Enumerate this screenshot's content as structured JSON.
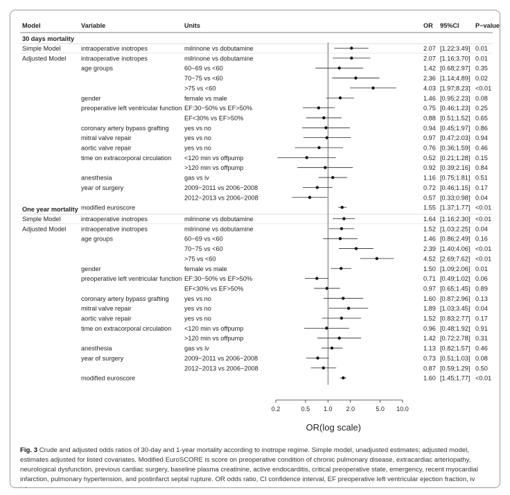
{
  "chart_data": {
    "type": "forest",
    "xlabel": "OR(log scale)",
    "x_ticks": [
      0.2,
      0.5,
      1.0,
      2.0,
      5.0,
      10.0
    ],
    "x_tick_labels": [
      "0.2",
      "0.5",
      "1.0",
      "2.0",
      "5.0",
      "10.0"
    ],
    "reference_line": 1.0,
    "columns": {
      "model": "Model",
      "variable": "Variable",
      "units": "Units",
      "or": "OR",
      "ci": "95%CI",
      "p": "P−value"
    },
    "sections": [
      {
        "title": "30 days mortality",
        "rows": [
          {
            "model": "Simple Model",
            "variable": "intraoperative inotropes",
            "units": "milrinone vs dobutamine",
            "or": 2.07,
            "lo": 1.22,
            "hi": 3.49,
            "or_text": "2.07",
            "ci_text": "[1.22;3.49]",
            "p": "0.01"
          },
          {
            "model": "Adjusted Model",
            "variable": "intraoperative inotropes",
            "units": "milrinone vs dobutamine",
            "or": 2.07,
            "lo": 1.16,
            "hi": 3.7,
            "or_text": "2.07",
            "ci_text": "[1.16;3.70]",
            "p": "0.01"
          },
          {
            "model": "",
            "variable": "age groups",
            "units": "60−69 vs <60",
            "or": 1.42,
            "lo": 0.68,
            "hi": 2.97,
            "or_text": "1.42",
            "ci_text": "[0.68;2.97]",
            "p": "0.35"
          },
          {
            "model": "",
            "variable": "",
            "units": "70−75 vs <60",
            "or": 2.36,
            "lo": 1.14,
            "hi": 4.89,
            "or_text": "2.36",
            "ci_text": "[1.14;4.89]",
            "p": "0.02"
          },
          {
            "model": "",
            "variable": "",
            "units": ">75 vs <60",
            "or": 4.03,
            "lo": 1.97,
            "hi": 8.23,
            "or_text": "4.03",
            "ci_text": "[1.97;8.23]",
            "p": "<0.01"
          },
          {
            "model": "",
            "variable": "gender",
            "units": "female vs male",
            "or": 1.46,
            "lo": 0.95,
            "hi": 2.23,
            "or_text": "1.46",
            "ci_text": "[0.95;2.23]",
            "p": "0.08"
          },
          {
            "model": "",
            "variable": "preoperative left ventricular function",
            "units": "EF:30−50% vs EF>50%",
            "or": 0.75,
            "lo": 0.46,
            "hi": 1.23,
            "or_text": "0.75",
            "ci_text": "[0.46;1.23]",
            "p": "0.25"
          },
          {
            "model": "",
            "variable": "",
            "units": "EF<30% vs EF>50%",
            "or": 0.88,
            "lo": 0.51,
            "hi": 1.52,
            "or_text": "0.88",
            "ci_text": "[0.51;1.52]",
            "p": "0.65"
          },
          {
            "model": "",
            "variable": "coronary artery bypass grafting",
            "units": "yes vs no",
            "or": 0.94,
            "lo": 0.45,
            "hi": 1.97,
            "or_text": "0.94",
            "ci_text": "[0.45;1.97]",
            "p": "0.86"
          },
          {
            "model": "",
            "variable": "mitral valve repair",
            "units": "yes vs no",
            "or": 0.97,
            "lo": 0.47,
            "hi": 2.03,
            "or_text": "0.97",
            "ci_text": "[0.47;2.03]",
            "p": "0.94"
          },
          {
            "model": "",
            "variable": "aortic valve repair",
            "units": "yes vs no",
            "or": 0.76,
            "lo": 0.36,
            "hi": 1.59,
            "or_text": "0.76",
            "ci_text": "[0.36;1.59]",
            "p": "0.46"
          },
          {
            "model": "",
            "variable": "time on extracorporal circulation",
            "units": "<120 min vs offpump",
            "or": 0.52,
            "lo": 0.21,
            "hi": 1.28,
            "or_text": "0.52",
            "ci_text": "[0.21;1.28]",
            "p": "0.15"
          },
          {
            "model": "",
            "variable": "",
            "units": ">120 min vs offpump",
            "or": 0.92,
            "lo": 0.39,
            "hi": 2.16,
            "or_text": "0.92",
            "ci_text": "[0.39;2.16]",
            "p": "0.84"
          },
          {
            "model": "",
            "variable": "anesthesia",
            "units": "gas vs iv",
            "or": 1.16,
            "lo": 0.75,
            "hi": 1.81,
            "or_text": "1.16",
            "ci_text": "[0.75;1.81]",
            "p": "0.51"
          },
          {
            "model": "",
            "variable": "year of surgery",
            "units": "2009−2011 vs 2006−2008",
            "or": 0.72,
            "lo": 0.46,
            "hi": 1.15,
            "or_text": "0.72",
            "ci_text": "[0.46;1.15]",
            "p": "0.17"
          },
          {
            "model": "",
            "variable": "",
            "units": "2012−2013 vs 2006−2008",
            "or": 0.57,
            "lo": 0.33,
            "hi": 0.98,
            "or_text": "0.57",
            "ci_text": "[0.33;0.98]",
            "p": "0.04"
          },
          {
            "model": "",
            "variable": "modified euroscore",
            "units": "",
            "or": 1.55,
            "lo": 1.37,
            "hi": 1.77,
            "or_text": "1.55",
            "ci_text": "[1.37;1.77]",
            "p": "<0.01"
          }
        ]
      },
      {
        "title": "One year mortality",
        "rows": [
          {
            "model": "Simple Model",
            "variable": "intraoperative inotropes",
            "units": "milrinone vs dobutamine",
            "or": 1.64,
            "lo": 1.16,
            "hi": 2.3,
            "or_text": "1.64",
            "ci_text": "[1.16;2.30]",
            "p": "<0.01"
          },
          {
            "model": "Adjusted Model",
            "variable": "intraoperative inotropes",
            "units": "milrinone vs dobutamine",
            "or": 1.52,
            "lo": 1.03,
            "hi": 2.25,
            "or_text": "1.52",
            "ci_text": "[1.03;2.25]",
            "p": "0.04"
          },
          {
            "model": "",
            "variable": "age groups",
            "units": "60−69 vs <60",
            "or": 1.46,
            "lo": 0.86,
            "hi": 2.49,
            "or_text": "1.46",
            "ci_text": "[0.86;2.49]",
            "p": "0.16"
          },
          {
            "model": "",
            "variable": "",
            "units": "70−75 vs <60",
            "or": 2.39,
            "lo": 1.4,
            "hi": 4.06,
            "or_text": "2.39",
            "ci_text": "[1.40;4.06]",
            "p": "<0.01"
          },
          {
            "model": "",
            "variable": "",
            "units": ">75 vs <60",
            "or": 4.52,
            "lo": 2.69,
            "hi": 7.62,
            "or_text": "4.52",
            "ci_text": "[2.69;7.62]",
            "p": "<0.01"
          },
          {
            "model": "",
            "variable": "gender",
            "units": "female vs male",
            "or": 1.5,
            "lo": 1.09,
            "hi": 2.06,
            "or_text": "1.50",
            "ci_text": "[1.09;2.06]",
            "p": "0.01"
          },
          {
            "model": "",
            "variable": "preoperative left ventricular function",
            "units": "EF:30−50% vs EF>50%",
            "or": 0.71,
            "lo": 0.49,
            "hi": 1.02,
            "or_text": "0.71",
            "ci_text": "[0.49;1.02]",
            "p": "0.06"
          },
          {
            "model": "",
            "variable": "",
            "units": "EF<30% vs EF>50%",
            "or": 0.97,
            "lo": 0.65,
            "hi": 1.45,
            "or_text": "0.97",
            "ci_text": "[0.65;1.45]",
            "p": "0.89"
          },
          {
            "model": "",
            "variable": "coronary artery bypass grafting",
            "units": "yes vs no",
            "or": 1.6,
            "lo": 0.87,
            "hi": 2.96,
            "or_text": "1.60",
            "ci_text": "[0.87;2.96]",
            "p": "0.13"
          },
          {
            "model": "",
            "variable": "mitral valve repair",
            "units": "yes vs no",
            "or": 1.89,
            "lo": 1.03,
            "hi": 3.45,
            "or_text": "1.89",
            "ci_text": "[1.03;3.45]",
            "p": "0.04"
          },
          {
            "model": "",
            "variable": "aortic valve repair",
            "units": "yes vs no",
            "or": 1.52,
            "lo": 0.83,
            "hi": 2.77,
            "or_text": "1.52",
            "ci_text": "[0.83;2.77]",
            "p": "0.17"
          },
          {
            "model": "",
            "variable": "time on extracorporal circulation",
            "units": "<120 min vs offpump",
            "or": 0.96,
            "lo": 0.48,
            "hi": 1.92,
            "or_text": "0.96",
            "ci_text": "[0.48;1.92]",
            "p": "0.91"
          },
          {
            "model": "",
            "variable": "",
            "units": ">120 min vs offpump",
            "or": 1.42,
            "lo": 0.72,
            "hi": 2.78,
            "or_text": "1.42",
            "ci_text": "[0.72;2.78]",
            "p": "0.31"
          },
          {
            "model": "",
            "variable": "anesthesia",
            "units": "gas vs iv",
            "or": 1.13,
            "lo": 0.82,
            "hi": 1.57,
            "or_text": "1.13",
            "ci_text": "[0.82;1.57]",
            "p": "0.46"
          },
          {
            "model": "",
            "variable": "year of surgery",
            "units": "2009−2011 vs 2006−2008",
            "or": 0.73,
            "lo": 0.51,
            "hi": 1.03,
            "or_text": "0.73",
            "ci_text": "[0.51;1.03]",
            "p": "0.08"
          },
          {
            "model": "",
            "variable": "",
            "units": "2012−2013 vs 2006−2008",
            "or": 0.87,
            "lo": 0.59,
            "hi": 1.29,
            "or_text": "0.87",
            "ci_text": "[0.59;1.29]",
            "p": "0.50"
          },
          {
            "model": "",
            "variable": "modified euroscore",
            "units": "",
            "or": 1.6,
            "lo": 1.45,
            "hi": 1.77,
            "or_text": "1.60",
            "ci_text": "[1.45;1.77]",
            "p": "<0.01"
          }
        ]
      }
    ]
  },
  "caption": {
    "label": "Fig. 3",
    "text": "Crude and adjusted odds ratios of 30-day and 1-year mortality according to inotrope regime. Simple model, unadjusted estimates; adjusted model, estimates adjusted for listed covariates. Modified EuroSCORE is score on preoperative condition of chronic pulmonary disease, extracardiac arteriopathy, neurological dysfunction, previous cardiac surgery, baseline plasma creatinine, active endocarditis, critical preoperative state, emergency, recent myocardial infarction, pulmonary hypertension, and postinfarct septal rupture. OR odds ratio, CI confidence interval, EF preoperative left ventricular ejection fraction, iv intravenous"
  }
}
